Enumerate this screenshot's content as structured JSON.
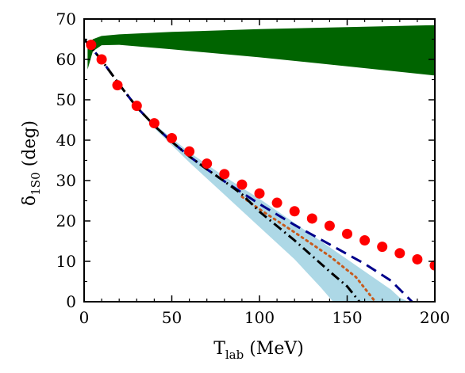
{
  "chart_data": {
    "type": "line",
    "xlabel": "T",
    "xlabel_sub": "lab",
    "xlabel_unit": " (MeV)",
    "ylabel": "δ",
    "ylabel_sub": "1S0",
    "ylabel_unit": " (deg)",
    "xlim": [
      0,
      200
    ],
    "ylim": [
      0,
      70
    ],
    "x_ticks": [
      0,
      50,
      100,
      150,
      200
    ],
    "y_ticks": [
      0,
      10,
      20,
      30,
      40,
      50,
      60,
      70
    ],
    "grid": false,
    "legend": "none",
    "series": [
      {
        "style": "band",
        "color": "#006400",
        "upper": [
          [
            2,
            63
          ],
          [
            5,
            65
          ],
          [
            10,
            65.8
          ],
          [
            20,
            66.2
          ],
          [
            50,
            66.8
          ],
          [
            100,
            67.5
          ],
          [
            150,
            68
          ],
          [
            200,
            68.5
          ]
        ],
        "lower": [
          [
            2,
            57.5
          ],
          [
            5,
            62
          ],
          [
            10,
            63.5
          ],
          [
            20,
            63.6
          ],
          [
            50,
            62.5
          ],
          [
            100,
            60.5
          ],
          [
            150,
            58.3
          ],
          [
            200,
            56
          ]
        ]
      },
      {
        "style": "band",
        "color": "#add8e6",
        "upper": [
          [
            40,
            44
          ],
          [
            60,
            37
          ],
          [
            80,
            31
          ],
          [
            100,
            25.5
          ],
          [
            120,
            19.5
          ],
          [
            140,
            13.5
          ],
          [
            160,
            7.5
          ],
          [
            175,
            3
          ],
          [
            180,
            1
          ],
          [
            185,
            0
          ]
        ],
        "lower": [
          [
            40,
            43
          ],
          [
            60,
            34.5
          ],
          [
            80,
            26.5
          ],
          [
            100,
            18.5
          ],
          [
            120,
            10.5
          ],
          [
            135,
            3.5
          ],
          [
            142,
            0
          ]
        ]
      },
      {
        "style": "dashed",
        "color": "#00008b",
        "points": [
          [
            0,
            65
          ],
          [
            10,
            59.8
          ],
          [
            20,
            53.8
          ],
          [
            30,
            48.2
          ],
          [
            40,
            43.6
          ],
          [
            50,
            39.6
          ],
          [
            60,
            36
          ],
          [
            70,
            32.8
          ],
          [
            80,
            29.8
          ],
          [
            90,
            27
          ],
          [
            100,
            24.2
          ],
          [
            120,
            19
          ],
          [
            140,
            14.2
          ],
          [
            160,
            9.4
          ],
          [
            175,
            5.2
          ],
          [
            187,
            0
          ]
        ]
      },
      {
        "style": "dotted",
        "color": "#c85a1c",
        "points": [
          [
            90,
            26
          ],
          [
            100,
            22.9
          ],
          [
            120,
            17.2
          ],
          [
            140,
            11.3
          ],
          [
            155,
            6.1
          ],
          [
            166,
            0
          ]
        ]
      },
      {
        "style": "dash-dot",
        "color": "#000000",
        "points": [
          [
            0,
            65
          ],
          [
            10,
            59.8
          ],
          [
            20,
            53.8
          ],
          [
            30,
            48.2
          ],
          [
            40,
            43.6
          ],
          [
            50,
            39.6
          ],
          [
            60,
            36
          ],
          [
            70,
            32.8
          ],
          [
            80,
            29.8
          ],
          [
            90,
            26.6
          ],
          [
            100,
            22.3
          ],
          [
            120,
            15.2
          ],
          [
            140,
            7.5
          ],
          [
            150,
            3.8
          ],
          [
            157,
            0
          ]
        ]
      },
      {
        "style": "markers",
        "color": "#ff0000",
        "points": [
          [
            4,
            63.6
          ],
          [
            10,
            60
          ],
          [
            19,
            53.6
          ],
          [
            30,
            48.5
          ],
          [
            40,
            44.2
          ],
          [
            50,
            40.5
          ],
          [
            60,
            37.2
          ],
          [
            70,
            34.2
          ],
          [
            80,
            31.6
          ],
          [
            90,
            29
          ],
          [
            100,
            26.8
          ],
          [
            110,
            24.5
          ],
          [
            120,
            22.4
          ],
          [
            130,
            20.6
          ],
          [
            140,
            18.8
          ],
          [
            150,
            16.8
          ],
          [
            160,
            15.2
          ],
          [
            170,
            13.6
          ],
          [
            180,
            12
          ],
          [
            190,
            10.5
          ],
          [
            200,
            9
          ]
        ]
      }
    ]
  }
}
